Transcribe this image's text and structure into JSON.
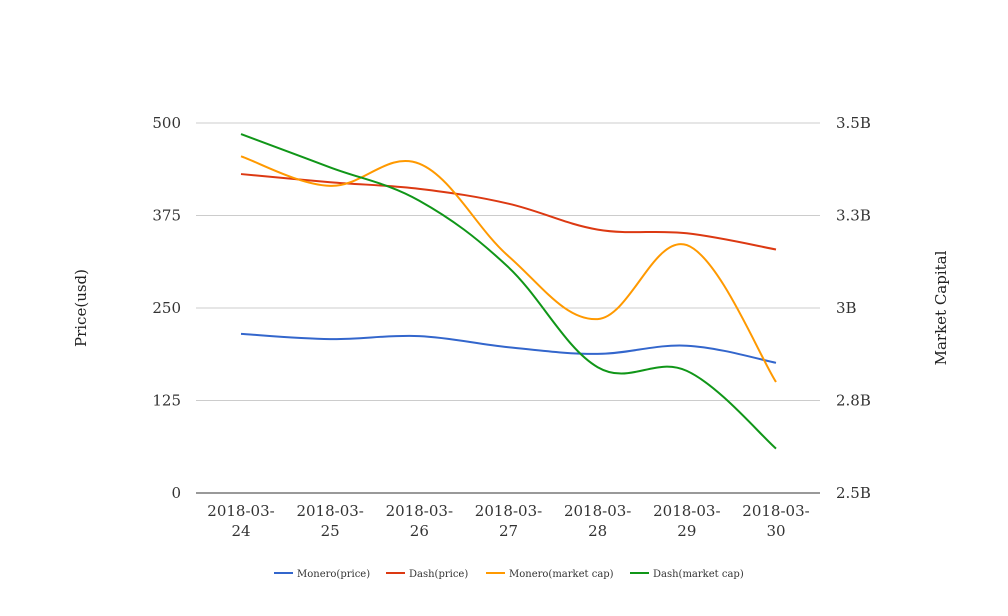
{
  "chart_data": {
    "type": "line",
    "x": [
      "2018-03-24",
      "2018-03-25",
      "2018-03-26",
      "2018-03-27",
      "2018-03-28",
      "2018-03-29",
      "2018-03-30"
    ],
    "x_tick_labels": [
      [
        "2018-03-",
        "24"
      ],
      [
        "2018-03-",
        "25"
      ],
      [
        "2018-03-",
        "26"
      ],
      [
        "2018-03-",
        "27"
      ],
      [
        "2018-03-",
        "28"
      ],
      [
        "2018-03-",
        "29"
      ],
      [
        "2018-03-",
        "30"
      ]
    ],
    "ylabel": "Price(usd)",
    "ylabel_right": "Market Capital",
    "ylim": [
      0,
      500
    ],
    "ylim_right": [
      2500000000,
      3500000000
    ],
    "yticks": [
      {
        "value": 0,
        "label": "0"
      },
      {
        "value": 125,
        "label": "125"
      },
      {
        "value": 250,
        "label": "250"
      },
      {
        "value": 375,
        "label": "375"
      },
      {
        "value": 500,
        "label": "500"
      }
    ],
    "yticks_right": [
      {
        "value": 2500000000,
        "label": "2.5B"
      },
      {
        "value": 2750000000,
        "label": "2.8B"
      },
      {
        "value": 3000000000,
        "label": "3B"
      },
      {
        "value": 3250000000,
        "label": "3.3B"
      },
      {
        "value": 3500000000,
        "label": "3.5B"
      }
    ],
    "grid": true,
    "legend_position": "bottom",
    "series": [
      {
        "name": "Monero(price)",
        "axis": "left",
        "color": "#3366cc",
        "values": [
          215,
          208,
          212,
          197,
          188,
          199,
          176
        ]
      },
      {
        "name": "Dash(price)",
        "axis": "left",
        "color": "#dc3912",
        "values": [
          431,
          420,
          411,
          391,
          356,
          351,
          329
        ]
      },
      {
        "name": "Monero(market cap)",
        "axis": "right",
        "color": "#ff9900",
        "values": [
          3410000000,
          3330000000,
          3390000000,
          3140000000,
          2970000000,
          3170000000,
          2800000000
        ]
      },
      {
        "name": "Dash(market cap)",
        "axis": "right",
        "color": "#109618",
        "values": [
          3470000000,
          3380000000,
          3290000000,
          3110000000,
          2840000000,
          2830000000,
          2620000000
        ]
      }
    ]
  }
}
